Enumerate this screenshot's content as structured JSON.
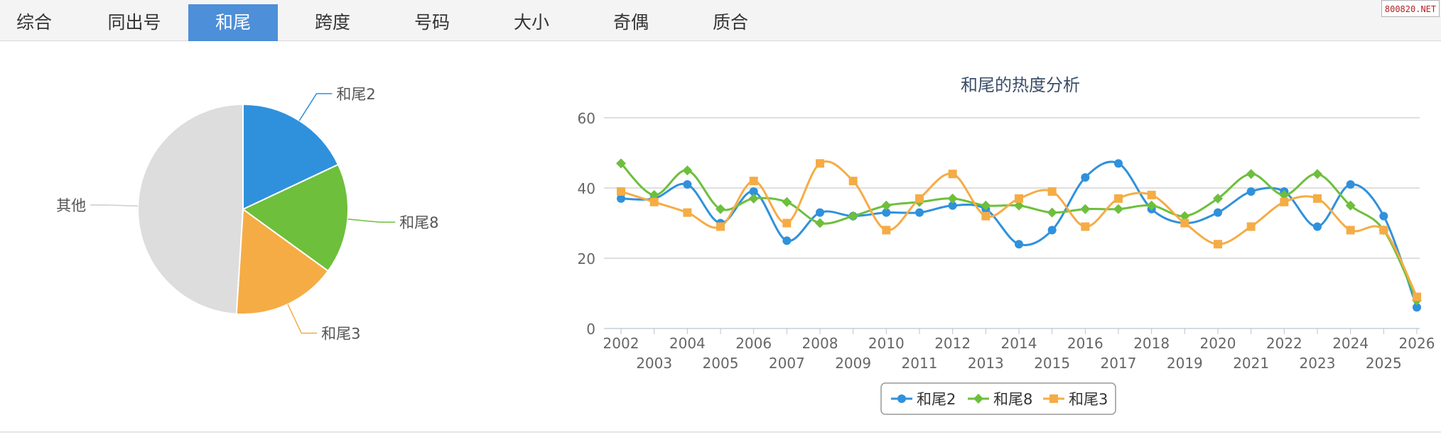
{
  "tabs": [
    {
      "label": "综合",
      "active": false
    },
    {
      "label": "同出号",
      "active": false
    },
    {
      "label": "和尾",
      "active": true
    },
    {
      "label": "跨度",
      "active": false
    },
    {
      "label": "号码",
      "active": false
    },
    {
      "label": "大小",
      "active": false
    },
    {
      "label": "奇偶",
      "active": false
    },
    {
      "label": "质合",
      "active": false
    }
  ],
  "watermark": "800820.NET",
  "colors": {
    "accent": "#4d8fd8",
    "blue": "#2f91dc",
    "green": "#6dbf3c",
    "orange": "#f5ac45",
    "gray": "#dddddd"
  },
  "chart_data": [
    {
      "type": "pie",
      "labels": [
        "和尾2",
        "和尾8",
        "和尾3",
        "其他"
      ],
      "values": [
        18,
        17,
        16,
        49
      ],
      "colors": [
        "#2f91dc",
        "#6dbf3c",
        "#f5ac45",
        "#dddddd"
      ]
    },
    {
      "type": "line",
      "title": "和尾的热度分析",
      "x": [
        "2002",
        "2003",
        "2004",
        "2005",
        "2006",
        "2007",
        "2008",
        "2009",
        "2010",
        "2011",
        "2012",
        "2013",
        "2014",
        "2015",
        "2016",
        "2017",
        "2018",
        "2019",
        "2020",
        "2021",
        "2022",
        "2023",
        "2024",
        "2025",
        "2026"
      ],
      "ylim": [
        0,
        60
      ],
      "yticks": [
        "0",
        "20",
        "40",
        "60"
      ],
      "grid": true,
      "legend": "bottom-center",
      "series": [
        {
          "name": "和尾2",
          "color": "#2f91dc",
          "marker": "circle",
          "values": [
            37,
            37,
            41,
            30,
            39,
            25,
            33,
            32,
            33,
            33,
            35,
            34,
            24,
            28,
            43,
            47,
            34,
            30,
            33,
            39,
            39,
            29,
            41,
            32,
            6
          ]
        },
        {
          "name": "和尾8",
          "color": "#6dbf3c",
          "marker": "diamond",
          "values": [
            47,
            38,
            45,
            34,
            37,
            36,
            30,
            32,
            35,
            36,
            37,
            35,
            35,
            33,
            34,
            34,
            35,
            32,
            37,
            44,
            38,
            44,
            35,
            28,
            8
          ]
        },
        {
          "name": "和尾3",
          "color": "#f5ac45",
          "marker": "square",
          "values": [
            39,
            36,
            33,
            29,
            42,
            30,
            47,
            42,
            28,
            37,
            44,
            32,
            37,
            39,
            29,
            37,
            38,
            30,
            24,
            29,
            36,
            37,
            28,
            28,
            9
          ]
        }
      ]
    }
  ]
}
